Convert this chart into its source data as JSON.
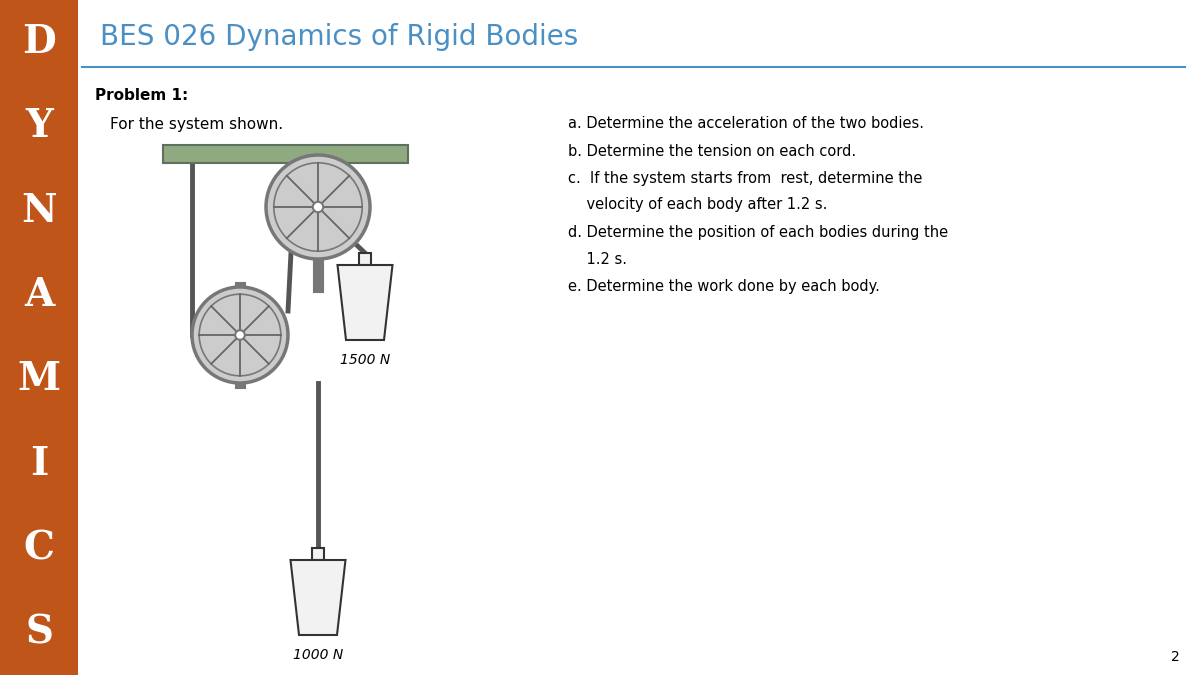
{
  "bg_color": "#ffffff",
  "sidebar_color": "#c0551a",
  "sidebar_letters": [
    "D",
    "Y",
    "N",
    "A",
    "M",
    "I",
    "C",
    "S"
  ],
  "title": "BES 026 Dynamics of Rigid Bodies",
  "title_color": "#4a90c4",
  "problem_label": "Problem 1:",
  "problem_desc": "For the system shown.",
  "q1": "a. Determine the acceleration of the two bodies.",
  "q2": "b. Determine the tension on each cord.",
  "q3a": "c.  If the system starts from  rest, determine the",
  "q3b": "    velocity of each body after 1.2 s.",
  "q4a": "d. Determine the position of each bodies during the",
  "q4b": "    1.2 s.",
  "q5": "e. Determine the work done by each body.",
  "weight_A_label": "1500 N",
  "weight_B_label": "1000 N",
  "page_num": "2",
  "ceiling_color": "#8faa80",
  "ceiling_edge_color": "#607060",
  "pulley_face_color": "#cccccc",
  "pulley_rim_color": "#777777",
  "pulley_spoke_color": "#666666",
  "axle_color": "#777777",
  "rope_color": "#555555",
  "weight_fill": "#f2f2f2",
  "weight_stroke": "#333333",
  "separator_color": "#4a90c4"
}
